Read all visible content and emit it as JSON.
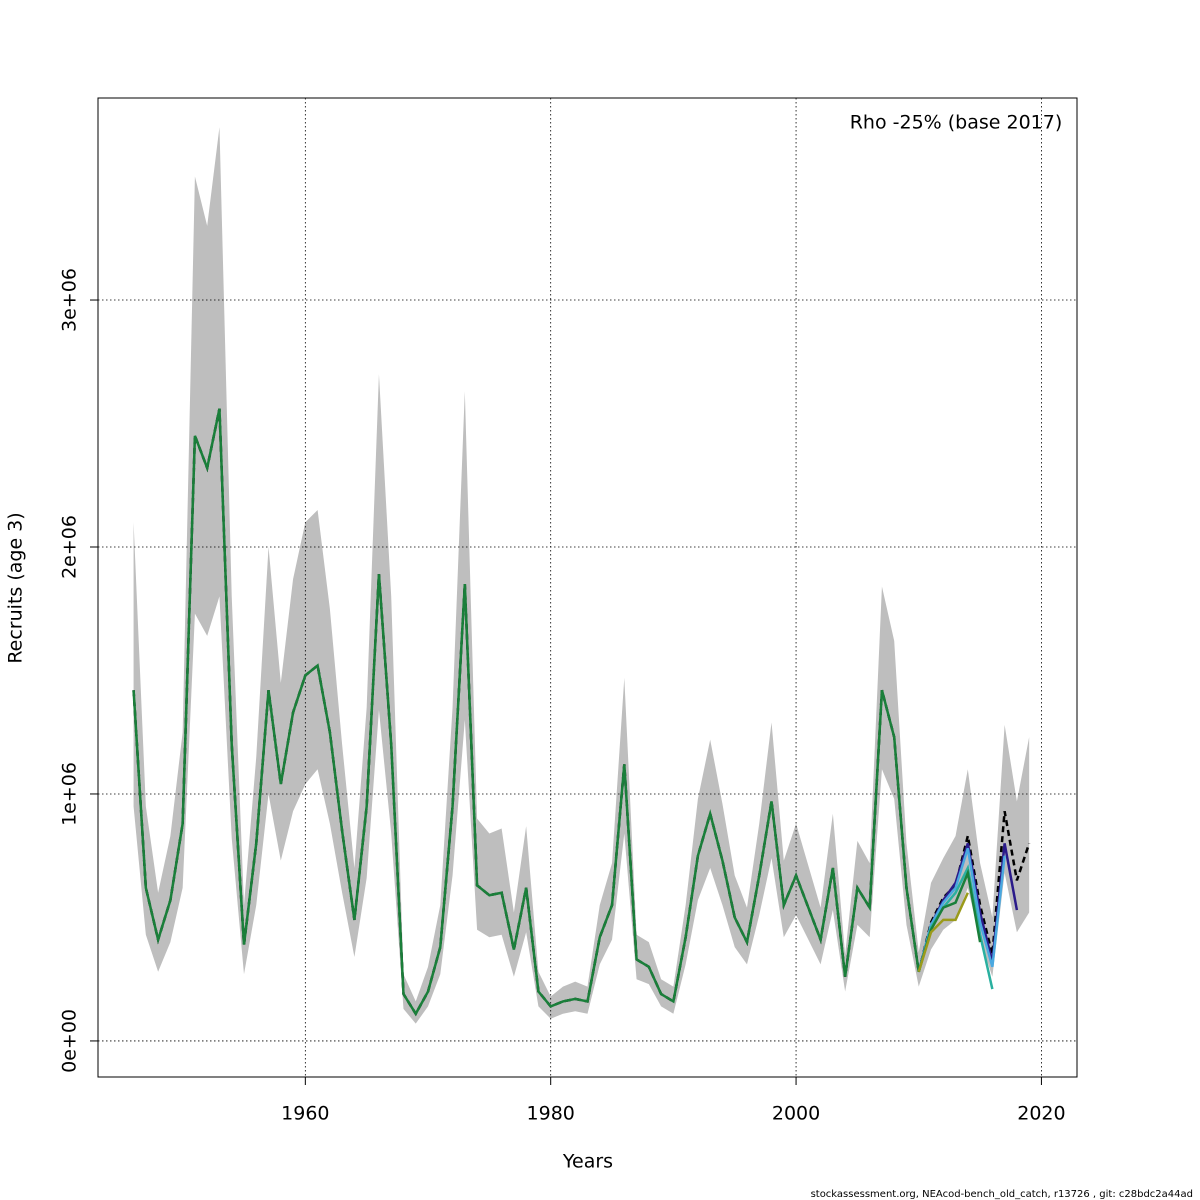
{
  "chart_data": {
    "type": "line",
    "annotation": "Rho -25% (base 2017)",
    "xlabel": "Years",
    "ylabel": "Recruits (age 3)",
    "footer": "stockassessment.org, NEAcod-bench_old_catch, r13726 , git: c28bdc2a44ad",
    "xlim": [
      1943.1,
      2022.9
    ],
    "ylim": [
      -146000,
      3818000
    ],
    "xticks": [
      1960,
      1980,
      2000,
      2020
    ],
    "yticks": [
      {
        "value": 0,
        "label": "0e+00"
      },
      {
        "value": 1000000,
        "label": "1e+06"
      },
      {
        "value": 2000000,
        "label": "2e+06"
      },
      {
        "value": 3000000,
        "label": "3e+06"
      }
    ],
    "grid": true,
    "x": [
      1946,
      1947,
      1948,
      1949,
      1950,
      1951,
      1952,
      1953,
      1954,
      1955,
      1956,
      1957,
      1958,
      1959,
      1960,
      1961,
      1962,
      1963,
      1964,
      1965,
      1966,
      1967,
      1968,
      1969,
      1970,
      1971,
      1972,
      1973,
      1974,
      1975,
      1976,
      1977,
      1978,
      1979,
      1980,
      1981,
      1982,
      1983,
      1984,
      1985,
      1986,
      1987,
      1988,
      1989,
      1990,
      1991,
      1992,
      1993,
      1994,
      1995,
      1996,
      1997,
      1998,
      1999,
      2000,
      2001,
      2002,
      2003,
      2004,
      2005,
      2006,
      2007,
      2008,
      2009,
      2010,
      2011,
      2012,
      2013,
      2014,
      2015,
      2016,
      2017,
      2018,
      2019
    ],
    "band": {
      "color": "#bebebe",
      "upper": [
        2100000,
        950000,
        600000,
        830000,
        1250000,
        3500000,
        3300000,
        3700000,
        1800000,
        550000,
        1150000,
        2000000,
        1450000,
        1870000,
        2100000,
        2150000,
        1750000,
        1200000,
        700000,
        1350000,
        2700000,
        1800000,
        270000,
        160000,
        300000,
        550000,
        1350000,
        2630000,
        900000,
        840000,
        860000,
        520000,
        870000,
        280000,
        180000,
        220000,
        240000,
        220000,
        550000,
        720000,
        1470000,
        430000,
        400000,
        250000,
        220000,
        550000,
        980000,
        1220000,
        960000,
        670000,
        540000,
        880000,
        1290000,
        730000,
        880000,
        710000,
        540000,
        920000,
        350000,
        810000,
        720000,
        1840000,
        1620000,
        800000,
        360000,
        640000,
        740000,
        830000,
        1100000,
        720000,
        500000,
        1280000,
        970000,
        1230000
      ],
      "lower": [
        950000,
        430000,
        280000,
        400000,
        620000,
        1730000,
        1640000,
        1800000,
        820000,
        270000,
        550000,
        1000000,
        730000,
        930000,
        1040000,
        1100000,
        880000,
        600000,
        340000,
        660000,
        1340000,
        840000,
        130000,
        70000,
        140000,
        270000,
        670000,
        1300000,
        450000,
        420000,
        430000,
        260000,
        440000,
        140000,
        90000,
        110000,
        120000,
        110000,
        310000,
        410000,
        840000,
        250000,
        230000,
        140000,
        110000,
        310000,
        570000,
        700000,
        550000,
        380000,
        310000,
        510000,
        740000,
        420000,
        510000,
        410000,
        310000,
        530000,
        200000,
        470000,
        420000,
        1100000,
        980000,
        470000,
        220000,
        370000,
        450000,
        490000,
        620000,
        410000,
        260000,
        680000,
        440000,
        520000
      ]
    },
    "series": [
      {
        "color": "#000000",
        "dashed": true,
        "values": [
          1420000,
          620000,
          410000,
          570000,
          880000,
          2450000,
          2320000,
          2560000,
          1200000,
          390000,
          800000,
          1420000,
          1040000,
          1330000,
          1480000,
          1520000,
          1250000,
          850000,
          490000,
          950000,
          1890000,
          1200000,
          190000,
          110000,
          200000,
          380000,
          950000,
          1850000,
          630000,
          590000,
          600000,
          370000,
          620000,
          200000,
          140000,
          160000,
          170000,
          160000,
          420000,
          550000,
          1120000,
          330000,
          300000,
          190000,
          160000,
          420000,
          750000,
          920000,
          730000,
          500000,
          400000,
          670000,
          970000,
          550000,
          670000,
          540000,
          410000,
          700000,
          260000,
          620000,
          540000,
          1420000,
          1230000,
          620000,
          280000,
          480000,
          580000,
          630000,
          830000,
          550000,
          350000,
          930000,
          650000,
          800000
        ]
      },
      {
        "color": "#2a1a8a",
        "x": [
          2010,
          2011,
          2012,
          2013,
          2014,
          2015,
          2016,
          2017,
          2018
        ],
        "values": [
          280000,
          470000,
          570000,
          640000,
          800000,
          520000,
          320000,
          800000,
          530000
        ]
      },
      {
        "color": "#4aa8e0",
        "x": [
          2010,
          2011,
          2012,
          2013,
          2014,
          2015,
          2016,
          2017
        ],
        "values": [
          280000,
          470000,
          560000,
          620000,
          780000,
          480000,
          300000,
          750000
        ]
      },
      {
        "color": "#2ab0a0",
        "x": [
          2010,
          2011,
          2012,
          2013,
          2014,
          2015,
          2016
        ],
        "values": [
          280000,
          460000,
          540000,
          600000,
          700000,
          430000,
          210000
        ]
      },
      {
        "color": "#1a7f3a",
        "values": [
          1420000,
          620000,
          410000,
          570000,
          880000,
          2450000,
          2320000,
          2560000,
          1200000,
          390000,
          800000,
          1420000,
          1040000,
          1330000,
          1480000,
          1520000,
          1250000,
          850000,
          490000,
          950000,
          1890000,
          1200000,
          190000,
          110000,
          200000,
          380000,
          950000,
          1850000,
          630000,
          590000,
          600000,
          370000,
          620000,
          200000,
          140000,
          160000,
          170000,
          160000,
          420000,
          550000,
          1120000,
          330000,
          300000,
          190000,
          160000,
          420000,
          750000,
          920000,
          730000,
          500000,
          400000,
          670000,
          970000,
          550000,
          670000,
          540000,
          410000,
          700000,
          260000,
          620000,
          540000,
          1420000,
          1230000,
          620000,
          280000,
          450000,
          540000,
          560000,
          680000,
          400000,
          null,
          null,
          null,
          null
        ]
      },
      {
        "color": "#9a9a1a",
        "x": [
          2010,
          2011,
          2012,
          2013,
          2014
        ],
        "values": [
          280000,
          440000,
          490000,
          490000,
          600000
        ]
      }
    ]
  }
}
